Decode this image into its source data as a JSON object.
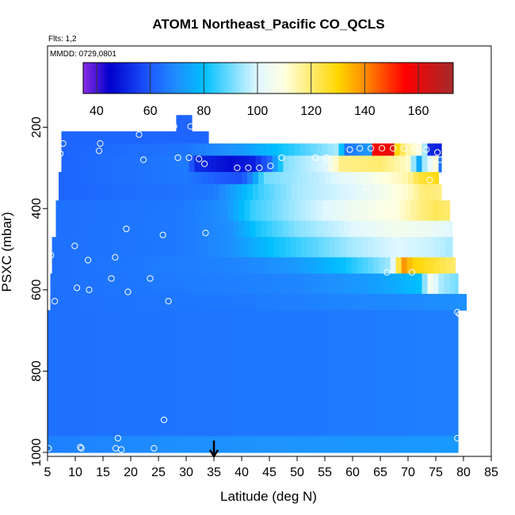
{
  "chart_data": {
    "type": "heatmap",
    "title": "ATOM1 Northeast_Pacific CO_QCLS",
    "annotations": {
      "flights": "Flts: 1,2",
      "dates": "MMDD: 0729,0801"
    },
    "xlabel": "Latitude (deg N)",
    "ylabel": "PSXC (mbar)",
    "xlim": [
      5,
      85
    ],
    "ylim": [
      1000,
      0
    ],
    "y_inverted": true,
    "x_ticks": [
      "5",
      "10",
      "15",
      "20",
      "25",
      "30",
      "35",
      "40",
      "45",
      "50",
      "55",
      "60",
      "65",
      "70",
      "75",
      "80",
      "85"
    ],
    "y_ticks": [
      "200",
      "400",
      "600",
      "800",
      "1000"
    ],
    "colorbar": {
      "range": [
        35,
        173
      ],
      "ticks": [
        "40",
        "60",
        "80",
        "100",
        "120",
        "140",
        "160"
      ],
      "colors": [
        "#8a2be2",
        "#0000cd",
        "#1e5aff",
        "#1e90ff",
        "#00bfff",
        "#e0f7ff",
        "#ffffe0",
        "#ffd700",
        "#ff8c00",
        "#ff0000",
        "#a52a2a"
      ],
      "color_stops": [
        35,
        45,
        60,
        70,
        80,
        100,
        110,
        130,
        140,
        155,
        173
      ]
    },
    "marker_latitude": 35,
    "pressure_layers": [
      {
        "top": 170,
        "bottom": 210,
        "lat_min": 28.2,
        "lat_max": 31.0,
        "profile": [
          [
            28,
            62
          ],
          [
            31,
            62
          ]
        ]
      },
      {
        "top": 210,
        "bottom": 240,
        "lat_min": 7.5,
        "lat_max": 34.0,
        "profile": [
          [
            7.5,
            62
          ],
          [
            34,
            62
          ]
        ]
      },
      {
        "top": 240,
        "bottom": 270,
        "lat_min": 7.5,
        "lat_max": 76.0,
        "profile": [
          [
            7.5,
            62
          ],
          [
            30,
            65
          ],
          [
            40,
            72
          ],
          [
            50,
            85
          ],
          [
            57,
            95
          ],
          [
            59,
            65
          ],
          [
            63,
            72
          ],
          [
            64,
            155
          ],
          [
            67,
            160
          ],
          [
            68,
            130
          ],
          [
            70,
            115
          ],
          [
            72,
            110
          ],
          [
            73,
            95
          ],
          [
            74,
            52
          ],
          [
            76,
            50
          ]
        ]
      },
      {
        "top": 270,
        "bottom": 310,
        "lat_min": 7.5,
        "lat_max": 76.0,
        "profile": [
          [
            7.5,
            62
          ],
          [
            30,
            66
          ],
          [
            32,
            52
          ],
          [
            38,
            47
          ],
          [
            42,
            50
          ],
          [
            45,
            62
          ],
          [
            48,
            92
          ],
          [
            55,
            100
          ],
          [
            58,
            118
          ],
          [
            65,
            120
          ],
          [
            70,
            112
          ],
          [
            72,
            75
          ],
          [
            73,
            95
          ],
          [
            75,
            110
          ],
          [
            76,
            50
          ]
        ]
      },
      {
        "top": 310,
        "bottom": 340,
        "lat_min": 7.0,
        "lat_max": 75.5,
        "profile": [
          [
            7,
            62
          ],
          [
            30,
            66
          ],
          [
            36,
            60
          ],
          [
            40,
            58
          ],
          [
            42,
            70
          ],
          [
            44,
            90
          ],
          [
            55,
            98
          ],
          [
            62,
            105
          ],
          [
            70,
            115
          ],
          [
            72,
            125
          ],
          [
            75,
            128
          ]
        ]
      },
      {
        "top": 340,
        "bottom": 380,
        "lat_min": 7.0,
        "lat_max": 76.0,
        "profile": [
          [
            7,
            62
          ],
          [
            25,
            64
          ],
          [
            35,
            66
          ],
          [
            38,
            72
          ],
          [
            43,
            85
          ],
          [
            50,
            95
          ],
          [
            60,
            100
          ],
          [
            70,
            112
          ],
          [
            73,
            120
          ],
          [
            76,
            118
          ]
        ]
      },
      {
        "top": 380,
        "bottom": 430,
        "lat_min": 6.5,
        "lat_max": 77.5,
        "profile": [
          [
            6.5,
            64
          ],
          [
            20,
            65
          ],
          [
            30,
            66
          ],
          [
            37,
            70
          ],
          [
            42,
            85
          ],
          [
            50,
            95
          ],
          [
            60,
            105
          ],
          [
            68,
            110
          ],
          [
            72,
            118
          ],
          [
            75,
            122
          ],
          [
            77.5,
            120
          ]
        ]
      },
      {
        "top": 430,
        "bottom": 470,
        "lat_min": 6.5,
        "lat_max": 78.0,
        "profile": [
          [
            6.5,
            64
          ],
          [
            30,
            66
          ],
          [
            38,
            70
          ],
          [
            43,
            82
          ],
          [
            50,
            92
          ],
          [
            60,
            100
          ],
          [
            68,
            106
          ],
          [
            74,
            104
          ],
          [
            78,
            100
          ]
        ]
      },
      {
        "top": 470,
        "bottom": 520,
        "lat_min": 5.8,
        "lat_max": 78.0,
        "profile": [
          [
            5.8,
            64
          ],
          [
            30,
            66
          ],
          [
            38,
            70
          ],
          [
            45,
            80
          ],
          [
            53,
            88
          ],
          [
            60,
            95
          ],
          [
            68,
            100
          ],
          [
            74,
            98
          ],
          [
            78,
            95
          ]
        ]
      },
      {
        "top": 520,
        "bottom": 560,
        "lat_min": 5.8,
        "lat_max": 78.5,
        "profile": [
          [
            5.8,
            64
          ],
          [
            40,
            68
          ],
          [
            50,
            72
          ],
          [
            58,
            80
          ],
          [
            63,
            88
          ],
          [
            67,
            95
          ],
          [
            69,
            140
          ],
          [
            71,
            130
          ],
          [
            75,
            125
          ],
          [
            78.5,
            120
          ]
        ]
      },
      {
        "top": 560,
        "bottom": 610,
        "lat_min": 5.5,
        "lat_max": 79.0,
        "profile": [
          [
            5.5,
            64
          ],
          [
            50,
            68
          ],
          [
            62,
            72
          ],
          [
            67,
            75
          ],
          [
            72,
            80
          ],
          [
            74,
            105
          ],
          [
            76,
            95
          ],
          [
            79,
            90
          ]
        ]
      },
      {
        "top": 610,
        "bottom": 650,
        "lat_min": 5.5,
        "lat_max": 80.5,
        "profile": [
          [
            5.5,
            64
          ],
          [
            40,
            66
          ],
          [
            60,
            68
          ],
          [
            80.5,
            70
          ]
        ]
      },
      {
        "top": 650,
        "bottom": 960,
        "lat_min": 5.0,
        "lat_max": 79.0,
        "profile": [
          [
            5,
            64
          ],
          [
            30,
            65
          ],
          [
            60,
            66
          ],
          [
            79,
            67
          ]
        ]
      },
      {
        "top": 960,
        "bottom": 1000,
        "lat_min": 5.0,
        "lat_max": 79.0,
        "profile": [
          [
            5,
            67
          ],
          [
            30,
            70
          ],
          [
            79,
            72
          ]
        ]
      }
    ],
    "points": [
      [
        7.8,
        240
      ],
      [
        7.3,
        265
      ],
      [
        14.5,
        240
      ],
      [
        14.3,
        258
      ],
      [
        21.5,
        218
      ],
      [
        22.3,
        280
      ],
      [
        27.8,
        198
      ],
      [
        30.8,
        198
      ],
      [
        28.5,
        275
      ],
      [
        30.5,
        275
      ],
      [
        32.3,
        278
      ],
      [
        33.3,
        290
      ],
      [
        39.2,
        300
      ],
      [
        41.2,
        300
      ],
      [
        43.2,
        300
      ],
      [
        45.2,
        295
      ],
      [
        47.2,
        275
      ],
      [
        53.3,
        275
      ],
      [
        55.3,
        275
      ],
      [
        59.5,
        255
      ],
      [
        61.3,
        252
      ],
      [
        63.3,
        252
      ],
      [
        65.3,
        252
      ],
      [
        67.3,
        252
      ],
      [
        69.3,
        252
      ],
      [
        71.3,
        252
      ],
      [
        73.3,
        255
      ],
      [
        75.3,
        262
      ],
      [
        75.8,
        280
      ],
      [
        73.9,
        330
      ],
      [
        62.5,
        348
      ],
      [
        19.2,
        450
      ],
      [
        25.8,
        465
      ],
      [
        33.5,
        460
      ],
      [
        9.9,
        492
      ],
      [
        5.6,
        515
      ],
      [
        12.3,
        527
      ],
      [
        17.2,
        520
      ],
      [
        16.5,
        572
      ],
      [
        23.5,
        572
      ],
      [
        10.3,
        595
      ],
      [
        12.5,
        600
      ],
      [
        19.5,
        605
      ],
      [
        26.8,
        628
      ],
      [
        6.3,
        628
      ],
      [
        66.2,
        557
      ],
      [
        70.7,
        557
      ],
      [
        78.9,
        655
      ],
      [
        79.3,
        660
      ],
      [
        26.0,
        920
      ],
      [
        17.7,
        965
      ],
      [
        78.9,
        965
      ],
      [
        5.2,
        990
      ],
      [
        10.9,
        987
      ],
      [
        11.1,
        990
      ],
      [
        17.3,
        990
      ],
      [
        18.3,
        993
      ],
      [
        24.2,
        990
      ]
    ]
  }
}
